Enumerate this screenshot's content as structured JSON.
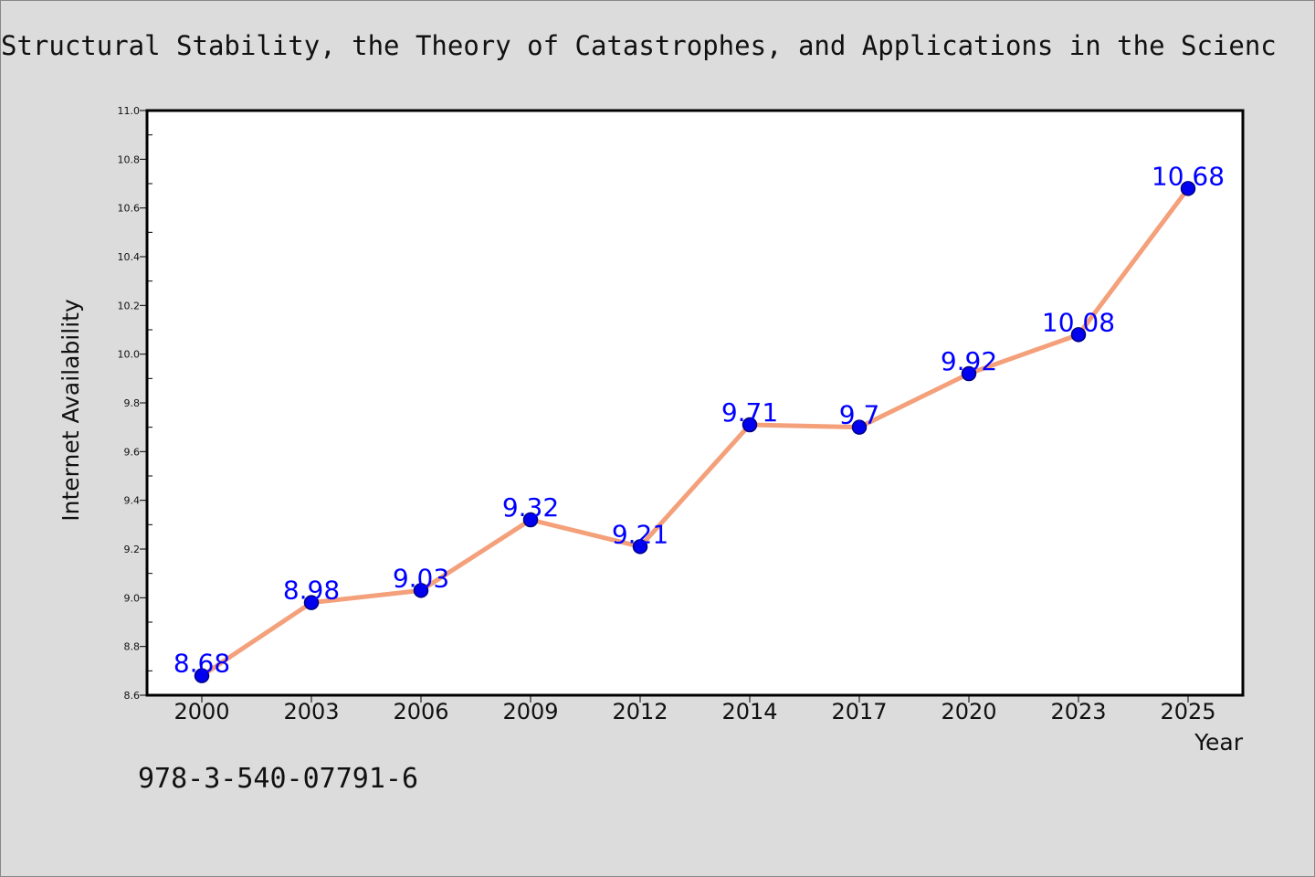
{
  "header": {
    "title": "Structural Stability, the Theory of Catastrophes, and Applications in the Scienc"
  },
  "footer": {
    "isbn": "978-3-540-07791-6"
  },
  "chart_data": {
    "type": "line",
    "title": "Structural Stability, the Theory of Catastrophes, and Applications in the Scienc",
    "xlabel": "Year",
    "ylabel": "Internet Availability",
    "categories": [
      "2000",
      "2003",
      "2006",
      "2009",
      "2012",
      "2014",
      "2017",
      "2020",
      "2023",
      "2025"
    ],
    "values": [
      8.68,
      8.98,
      9.03,
      9.32,
      9.21,
      9.71,
      9.7,
      9.92,
      10.08,
      10.68
    ],
    "data_labels": [
      "8.68",
      "8.98",
      "9.03",
      "9.32",
      "9.21",
      "9.71",
      "9.7",
      "9.92",
      "10.08",
      "10.68"
    ],
    "ylim": [
      8.6,
      11.0
    ],
    "yticks": [
      "8.6",
      "8.8",
      "9.0",
      "9.2",
      "9.4",
      "9.6",
      "9.8",
      "10.0",
      "10.2",
      "10.4",
      "10.6",
      "10.8",
      "11.0"
    ],
    "grid": false,
    "legend": "none",
    "colors": {
      "line": "#f4a07a",
      "marker": "#0000ee",
      "marker_edge": "#000080",
      "data_label": "#0000ff",
      "axis": "#000000",
      "plot_background": "#ffffff"
    }
  }
}
